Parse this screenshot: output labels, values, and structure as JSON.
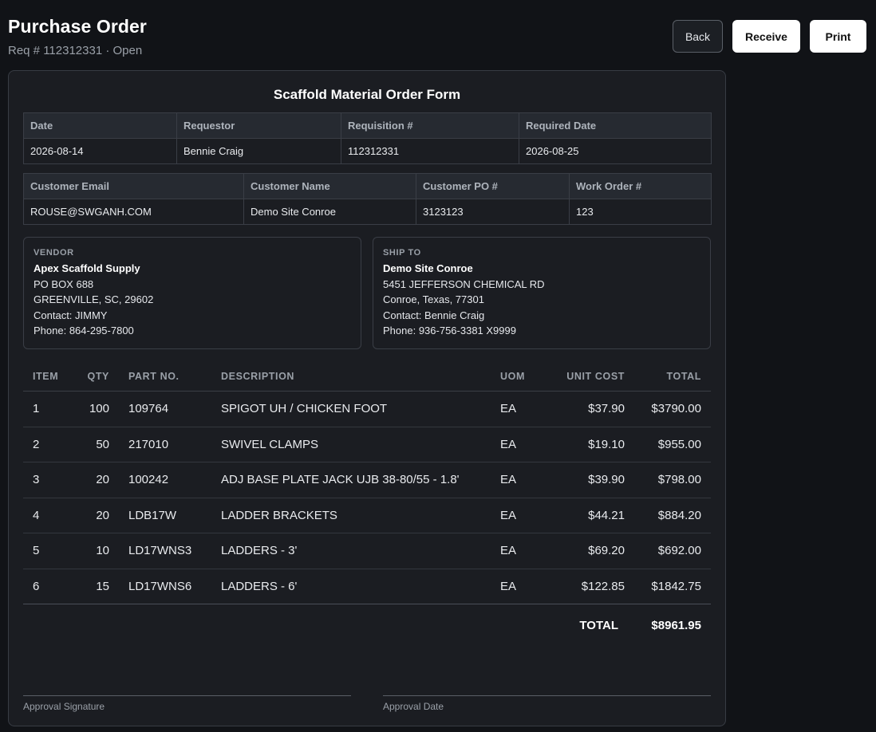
{
  "header": {
    "title": "Purchase Order",
    "subtitle": "Req # 112312331 · Open",
    "buttons": {
      "back": "Back",
      "receive": "Receive",
      "print": "Print"
    }
  },
  "form": {
    "title": "Scaffold Material Order Form",
    "info1": {
      "headers": [
        "Date",
        "Requestor",
        "Requisition #",
        "Required Date"
      ],
      "values": [
        "2026-08-14",
        "Bennie Craig",
        "112312331",
        "2026-08-25"
      ]
    },
    "info2": {
      "headers": [
        "Customer Email",
        "Customer Name",
        "Customer PO #",
        "Work Order #"
      ],
      "values": [
        "ROUSE@SWGANH.COM",
        "Demo Site Conroe",
        "3123123",
        "123"
      ]
    },
    "vendor": {
      "label": "VENDOR",
      "name": "Apex Scaffold Supply",
      "line1": "PO BOX 688",
      "line2": "GREENVILLE, SC, 29602",
      "contact": "Contact: JIMMY",
      "phone": "Phone: 864-295-7800"
    },
    "ship_to": {
      "label": "SHIP TO",
      "name": "Demo Site Conroe",
      "line1": "5451 JEFFERSON CHEMICAL RD",
      "line2": "Conroe, Texas, 77301",
      "contact": "Contact: Bennie Craig",
      "phone": "Phone: 936-756-3381 X9999"
    },
    "items": {
      "headers": [
        "ITEM",
        "QTY",
        "PART NO.",
        "DESCRIPTION",
        "UOM",
        "UNIT COST",
        "TOTAL"
      ],
      "rows": [
        [
          "1",
          "100",
          "109764",
          "SPIGOT UH / CHICKEN FOOT",
          "EA",
          "$37.90",
          "$3790.00"
        ],
        [
          "2",
          "50",
          "217010",
          "SWIVEL CLAMPS",
          "EA",
          "$19.10",
          "$955.00"
        ],
        [
          "3",
          "20",
          "100242",
          "ADJ BASE PLATE JACK UJB 38-80/55 - 1.8'",
          "EA",
          "$39.90",
          "$798.00"
        ],
        [
          "4",
          "20",
          "LDB17W",
          "LADDER BRACKETS",
          "EA",
          "$44.21",
          "$884.20"
        ],
        [
          "5",
          "10",
          "LD17WNS3",
          "LADDERS - 3'",
          "EA",
          "$69.20",
          "$692.00"
        ],
        [
          "6",
          "15",
          "LD17WNS6",
          "LADDERS - 6'",
          "EA",
          "$122.85",
          "$1842.75"
        ]
      ],
      "total_label": "TOTAL",
      "total_value": "$8961.95"
    },
    "signatures": {
      "signature_label": "Approval Signature",
      "date_label": "Approval Date"
    }
  }
}
